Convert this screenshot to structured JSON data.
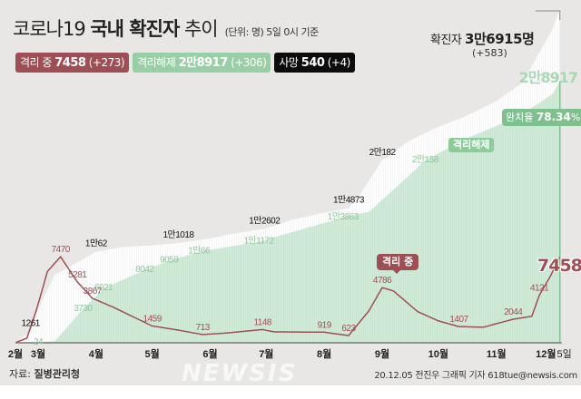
{
  "header": {
    "title_prefix": "코로나19 ",
    "title_bold": "국내 확진자",
    "title_suffix": " 추이",
    "unit_note": "(단위: 명) 5일 0시 기준"
  },
  "badges": {
    "isolating": {
      "label": "격리 중 ",
      "value": "7458",
      "diff": " (+273)"
    },
    "released": {
      "label": "격리해제 ",
      "value": "2만8917",
      "diff": " (+306)"
    },
    "deaths": {
      "label": "사망 ",
      "value": "540",
      "diff": " (+4)"
    }
  },
  "confirmed_total": {
    "label": "확진자 ",
    "value": "3만6915명",
    "diff": "(+583)"
  },
  "released_total": "2만8917",
  "recovery_rate": {
    "label": "완치율 ",
    "value": "78.34",
    "unit": "%"
  },
  "tags": {
    "released": "격리해제",
    "isolating": "격리 중"
  },
  "isolating_latest": "7458",
  "footer": {
    "source_label": "자료: ",
    "source": "질병관리청",
    "credit": "20.12.05 전진우 그래픽 기자 618tue@newsis.com",
    "watermark": "NEWSIS"
  },
  "colors": {
    "isolating": "#9e4f55",
    "released": "#98cfa6",
    "released_area": "#d3eadb",
    "confirmed_area": "#ffffff",
    "deaths": "#0c0c0c",
    "background": "#e8e7e5"
  },
  "chart_data": {
    "type": "area+line",
    "x_ticks": [
      {
        "label": "2월",
        "date": "02-18"
      },
      {
        "label": "3월",
        "date": "03-01"
      },
      {
        "label": "4월",
        "date": "04-01"
      },
      {
        "label": "5월",
        "date": "05-01"
      },
      {
        "label": "6월",
        "date": "06-01"
      },
      {
        "label": "7월",
        "date": "07-01"
      },
      {
        "label": "8월",
        "date": "08-01"
      },
      {
        "label": "9월",
        "date": "09-01"
      },
      {
        "label": "10월",
        "date": "10-01"
      },
      {
        "label": "11월",
        "date": "11-01"
      },
      {
        "label": "12월",
        "date": "12-01"
      },
      {
        "label": "5일",
        "date": "12-05"
      }
    ],
    "series": [
      {
        "name": "확진자",
        "style": "area",
        "points": [
          [
            "02-18",
            31
          ],
          [
            "02-26",
            1261
          ],
          [
            "03-01",
            3736
          ],
          [
            "03-10",
            7513
          ],
          [
            "03-20",
            8652
          ],
          [
            "04-01",
            10062
          ],
          [
            "04-15",
            10591
          ],
          [
            "05-01",
            10774
          ],
          [
            "05-15",
            11018
          ],
          [
            "06-01",
            11541
          ],
          [
            "06-15",
            12121
          ],
          [
            "06-30",
            12602
          ],
          [
            "07-15",
            13612
          ],
          [
            "08-01",
            14389
          ],
          [
            "08-14",
            14873
          ],
          [
            "08-20",
            16346
          ],
          [
            "09-01",
            20182
          ],
          [
            "09-15",
            22285
          ],
          [
            "10-01",
            23889
          ],
          [
            "10-15",
            24988
          ],
          [
            "11-01",
            26732
          ],
          [
            "11-15",
            28769
          ],
          [
            "12-01",
            34652
          ],
          [
            "12-05",
            36915
          ]
        ]
      },
      {
        "name": "격리해제",
        "style": "area",
        "points": [
          [
            "02-18",
            12
          ],
          [
            "03-01",
            24
          ],
          [
            "03-10",
            200
          ],
          [
            "03-25",
            3730
          ],
          [
            "04-05",
            6021
          ],
          [
            "04-27",
            8042
          ],
          [
            "05-10",
            9059
          ],
          [
            "05-26",
            10066
          ],
          [
            "06-27",
            11172
          ],
          [
            "08-11",
            13863
          ],
          [
            "08-25",
            14500
          ],
          [
            "09-10",
            17500
          ],
          [
            "09-24",
            20158
          ],
          [
            "10-15",
            22500
          ],
          [
            "11-01",
            24000
          ],
          [
            "11-15",
            25300
          ],
          [
            "12-01",
            27500
          ],
          [
            "12-05",
            28917
          ]
        ]
      },
      {
        "name": "격리 중",
        "style": "line",
        "points": [
          [
            "02-18",
            19
          ],
          [
            "02-24",
            400
          ],
          [
            "02-29",
            2800
          ],
          [
            "03-06",
            6200
          ],
          [
            "03-13",
            7470
          ],
          [
            "03-22",
            5281
          ],
          [
            "03-30",
            3867
          ],
          [
            "04-10",
            3100
          ],
          [
            "05-01",
            1459
          ],
          [
            "05-15",
            1100
          ],
          [
            "05-28",
            713
          ],
          [
            "06-10",
            850
          ],
          [
            "06-29",
            1148
          ],
          [
            "07-05",
            950
          ],
          [
            "08-01",
            919
          ],
          [
            "08-14",
            623
          ],
          [
            "08-25",
            2800
          ],
          [
            "09-01",
            4786
          ],
          [
            "09-07",
            4500
          ],
          [
            "09-20",
            2700
          ],
          [
            "10-01",
            1900
          ],
          [
            "10-12",
            1407
          ],
          [
            "10-25",
            1350
          ],
          [
            "11-10",
            2044
          ],
          [
            "11-20",
            2300
          ],
          [
            "11-24",
            4121
          ],
          [
            "11-30",
            5800
          ],
          [
            "12-05",
            7458
          ]
        ]
      }
    ],
    "data_labels": [
      {
        "series": "확진자",
        "date": "02-26",
        "text": "1261"
      },
      {
        "series": "확진자",
        "date": "04-01",
        "text": "1만62"
      },
      {
        "series": "확진자",
        "date": "05-15",
        "text": "1만1018"
      },
      {
        "series": "확진자",
        "date": "06-30",
        "text": "1만2602"
      },
      {
        "series": "확진자",
        "date": "08-14",
        "text": "1만4873"
      },
      {
        "series": "확진자",
        "date": "09-01",
        "text": "2만182"
      },
      {
        "series": "격리해제",
        "date": "03-01",
        "text": "24"
      },
      {
        "series": "격리해제",
        "date": "03-25",
        "text": "3730"
      },
      {
        "series": "격리해제",
        "date": "04-05",
        "text": "6021"
      },
      {
        "series": "격리해제",
        "date": "04-27",
        "text": "8042"
      },
      {
        "series": "격리해제",
        "date": "05-10",
        "text": "9059"
      },
      {
        "series": "격리해제",
        "date": "05-26",
        "text": "1만66"
      },
      {
        "series": "격리해제",
        "date": "06-27",
        "text": "1만1172"
      },
      {
        "series": "격리해제",
        "date": "08-11",
        "text": "1만3863"
      },
      {
        "series": "격리해제",
        "date": "09-24",
        "text": "2만158"
      },
      {
        "series": "격리 중",
        "date": "03-13",
        "text": "7470"
      },
      {
        "series": "격리 중",
        "date": "03-22",
        "text": "5281"
      },
      {
        "series": "격리 중",
        "date": "03-30",
        "text": "3867"
      },
      {
        "series": "격리 중",
        "date": "05-01",
        "text": "1459"
      },
      {
        "series": "격리 중",
        "date": "05-28",
        "text": "713"
      },
      {
        "series": "격리 중",
        "date": "06-29",
        "text": "1148"
      },
      {
        "series": "격리 중",
        "date": "08-01",
        "text": "919"
      },
      {
        "series": "격리 중",
        "date": "08-14",
        "text": "623"
      },
      {
        "series": "격리 중",
        "date": "09-01",
        "text": "4786"
      },
      {
        "series": "격리 중",
        "date": "10-12",
        "text": "1407"
      },
      {
        "series": "격리 중",
        "date": "11-10",
        "text": "2044"
      },
      {
        "series": "격리 중",
        "date": "11-24",
        "text": "4121"
      }
    ]
  }
}
